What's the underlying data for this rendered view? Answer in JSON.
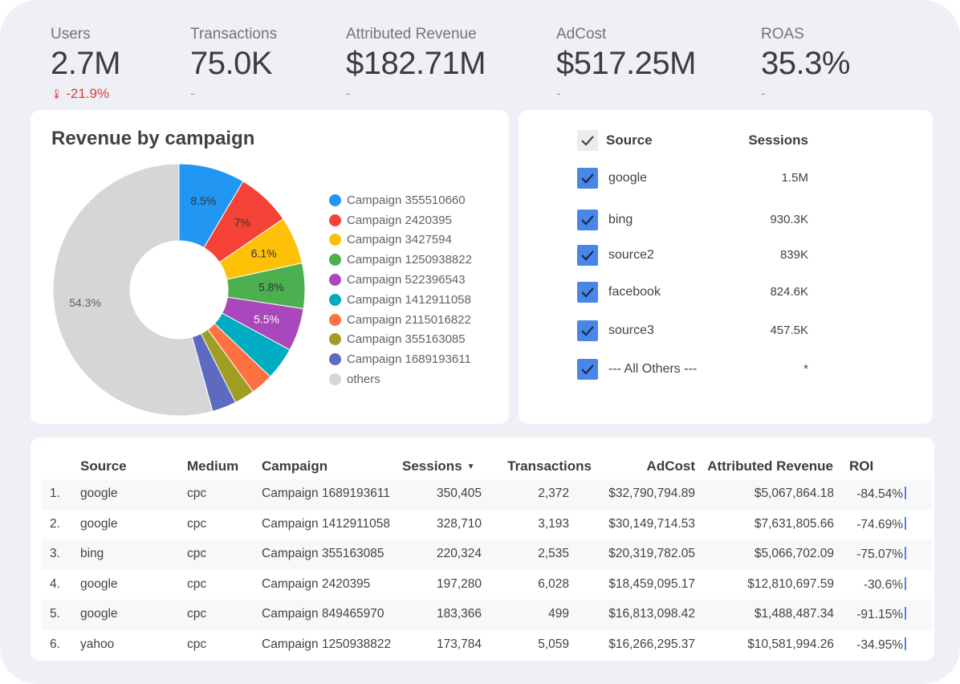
{
  "kpis": [
    {
      "label": "Users",
      "value": "2.7M",
      "delta": "-21.9%",
      "delta_negative": true
    },
    {
      "label": "Transactions",
      "value": "75.0K",
      "delta": "-",
      "delta_negative": false
    },
    {
      "label": "Attributed Revenue",
      "value": "$182.71M",
      "delta": "-",
      "delta_negative": false
    },
    {
      "label": "AdCost",
      "value": "$517.25M",
      "delta": "-",
      "delta_negative": false
    },
    {
      "label": "ROAS",
      "value": "35.3%",
      "delta": "-",
      "delta_negative": false
    }
  ],
  "chart_data": {
    "type": "pie",
    "donut": true,
    "title": "Revenue by campaign",
    "legend_position": "right",
    "slices": [
      {
        "name": "Campaign 355510660",
        "value": 8.5,
        "label": "8.5%",
        "color": "#2196f3"
      },
      {
        "name": "Campaign 2420395",
        "value": 7.0,
        "label": "7%",
        "color": "#f44336"
      },
      {
        "name": "Campaign 3427594",
        "value": 6.1,
        "label": "6.1%",
        "color": "#ffc107"
      },
      {
        "name": "Campaign 1250938822",
        "value": 5.8,
        "label": "5.8%",
        "color": "#4caf50"
      },
      {
        "name": "Campaign 522396543",
        "value": 5.5,
        "label": "5.5%",
        "color": "#ab47bc"
      },
      {
        "name": "Campaign 1412911058",
        "value": 4.2,
        "label": "",
        "color": "#00acc1"
      },
      {
        "name": "Campaign 2115016822",
        "value": 2.9,
        "label": "",
        "color": "#ff7043"
      },
      {
        "name": "Campaign 355163085",
        "value": 2.6,
        "label": "",
        "color": "#9e9d24"
      },
      {
        "name": "Campaign 1689193611",
        "value": 3.1,
        "label": "",
        "color": "#5c6bc0"
      },
      {
        "name": "others",
        "value": 54.3,
        "label": "54.3%",
        "color": "#d6d6d6"
      }
    ]
  },
  "source_filter": {
    "header": {
      "source": "Source",
      "sessions": "Sessions"
    },
    "rows": [
      {
        "source": "google",
        "sessions": "1.5M",
        "checked": true
      },
      {
        "source": "bing",
        "sessions": "930.3K",
        "checked": true
      },
      {
        "source": "source2",
        "sessions": "839K",
        "checked": true
      },
      {
        "source": "facebook",
        "sessions": "824.6K",
        "checked": true
      },
      {
        "source": "source3",
        "sessions": "457.5K",
        "checked": true
      },
      {
        "source": "--- All Others ---",
        "sessions": "*",
        "checked": true
      }
    ]
  },
  "table": {
    "headers": {
      "source": "Source",
      "medium": "Medium",
      "campaign": "Campaign",
      "sessions": "Sessions",
      "transactions": "Transactions",
      "adcost": "AdCost",
      "revenue": "Attributed Revenue",
      "roi": "ROI"
    },
    "sort_indicator": "▼",
    "rows": [
      {
        "n": "1.",
        "source": "google",
        "medium": "cpc",
        "campaign": "Campaign 1689193611",
        "sessions": "350,405",
        "transactions": "2,372",
        "adcost": "$32,790,794.89",
        "revenue": "$5,067,864.18",
        "roi": "-84.54%"
      },
      {
        "n": "2.",
        "source": "google",
        "medium": "cpc",
        "campaign": "Campaign 1412911058",
        "sessions": "328,710",
        "transactions": "3,193",
        "adcost": "$30,149,714.53",
        "revenue": "$7,631,805.66",
        "roi": "-74.69%"
      },
      {
        "n": "3.",
        "source": "bing",
        "medium": "cpc",
        "campaign": "Campaign 355163085",
        "sessions": "220,324",
        "transactions": "2,535",
        "adcost": "$20,319,782.05",
        "revenue": "$5,066,702.09",
        "roi": "-75.07%"
      },
      {
        "n": "4.",
        "source": "google",
        "medium": "cpc",
        "campaign": "Campaign 2420395",
        "sessions": "197,280",
        "transactions": "6,028",
        "adcost": "$18,459,095.17",
        "revenue": "$12,810,697.59",
        "roi": "-30.6%"
      },
      {
        "n": "5.",
        "source": "google",
        "medium": "cpc",
        "campaign": "Campaign 849465970",
        "sessions": "183,366",
        "transactions": "499",
        "adcost": "$16,813,098.42",
        "revenue": "$1,488,487.34",
        "roi": "-91.15%"
      },
      {
        "n": "6.",
        "source": "yahoo",
        "medium": "cpc",
        "campaign": "Campaign 1250938822",
        "sessions": "173,784",
        "transactions": "5,059",
        "adcost": "$16,266,295.37",
        "revenue": "$10,581,994.26",
        "roi": "-34.95%"
      }
    ]
  },
  "colors": {
    "accent": "#4a86e8",
    "negative": "#e53935",
    "background": "#eef0f5"
  },
  "icons": {
    "checkbox": "check-icon",
    "delta_down": "arrow-down-icon",
    "sort": "sort-desc-icon"
  }
}
